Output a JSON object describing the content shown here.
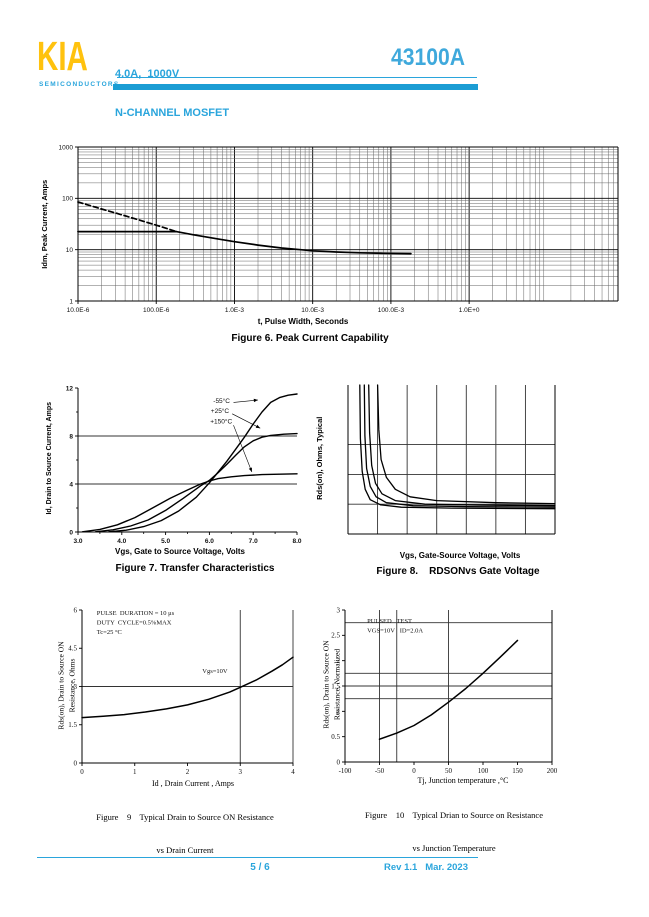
{
  "header": {
    "logo": "KIA",
    "logo_sub": "SEMICONDUCTORS",
    "subtitle_line1": "4.0A,  1000V",
    "subtitle_line2": "N-CHANNEL MOSFET",
    "part_number": "43100A",
    "accent_color": "#1B9DD4",
    "logo_color": "#FFC20E"
  },
  "footer": {
    "page": "5 / 6",
    "revision": "Rev 1.1   Mar. 2023"
  },
  "chart_data": [
    {
      "id": "fig6",
      "type": "line",
      "title": "Figure 6. Peak Current Capability",
      "xlabel": "t, Pulse Width, Seconds",
      "ylabel": "Idm, Peak Current, Amps",
      "x_scale": "log",
      "y_scale": "log",
      "xlim": [
        1e-05,
        80
      ],
      "ylim": [
        1,
        1000
      ],
      "grid": "log-minor",
      "legend_position": "none",
      "border": [
        "left",
        "right",
        "top",
        "bottom"
      ],
      "x_ticks": {
        "values": [
          1e-05,
          0.0001,
          0.001,
          0.01,
          0.1,
          1
        ],
        "labels": [
          "10.0E-6",
          "100.0E-6",
          "1.0E-3",
          "10.0E-3",
          "100.0E-3",
          "1.0E+0"
        ]
      },
      "y_ticks": {
        "values": [
          1,
          10,
          100,
          1000
        ],
        "labels": [
          "1",
          "10",
          "100",
          "1000"
        ]
      },
      "series": [
        {
          "name": "single-pulse-dashed",
          "dash": true,
          "width": 1.7,
          "points": [
            [
              1e-05,
              85
            ],
            [
              2e-05,
              62
            ],
            [
              3e-05,
              52
            ],
            [
              6e-05,
              38
            ],
            [
              0.0001,
              30
            ],
            [
              0.00014,
              25.5
            ],
            [
              0.00018,
              22.5
            ]
          ]
        },
        {
          "name": "dc-limit",
          "width": 1.7,
          "points": [
            [
              1e-05,
              22.5
            ],
            [
              0.00018,
              22.5
            ]
          ]
        },
        {
          "name": "peak-current",
          "width": 1.7,
          "points": [
            [
              0.00018,
              22.5
            ],
            [
              0.0003,
              19.5
            ],
            [
              0.0006,
              16.3
            ],
            [
              0.001,
              14.3
            ],
            [
              0.002,
              12.3
            ],
            [
              0.004,
              10.8
            ],
            [
              0.007,
              10.0
            ],
            [
              0.01,
              9.5
            ],
            [
              0.02,
              9.0
            ],
            [
              0.04,
              8.7
            ],
            [
              0.08,
              8.5
            ],
            [
              0.18,
              8.4
            ]
          ]
        }
      ]
    },
    {
      "id": "fig7",
      "type": "line",
      "title": "Figure 7. Transfer Characteristics",
      "xlabel": "Vgs, Gate to Source Voltage, Volts",
      "ylabel": "Id, Drain to Source Current, Amps",
      "x_scale": "linear",
      "y_scale": "linear",
      "xlim": [
        3,
        8
      ],
      "ylim": [
        0,
        12
      ],
      "y_grid": [
        4,
        8
      ],
      "border": [
        "left",
        "bottom"
      ],
      "x_ticks": {
        "values": [
          3,
          4,
          5,
          6,
          7,
          8
        ],
        "labels": [
          "3.0",
          "4.0",
          "5.0",
          "6.0",
          "7.0",
          "8.0"
        ]
      },
      "y_ticks": {
        "values": [
          0,
          4,
          8,
          12
        ],
        "labels": [
          "0",
          "4",
          "8",
          "12"
        ]
      },
      "x_minor_ticks": [
        3.5,
        4.5,
        5.5,
        6.5,
        7.5
      ],
      "y_minor_ticks": [
        2,
        6,
        10
      ],
      "series": [
        {
          "name": "minus-55C",
          "label": "-55°C",
          "width": 1.4,
          "points": [
            [
              3.7,
              0.02
            ],
            [
              4.1,
              0.15
            ],
            [
              4.5,
              0.45
            ],
            [
              4.9,
              0.95
            ],
            [
              5.3,
              1.75
            ],
            [
              5.7,
              2.9
            ],
            [
              6.0,
              4.1
            ],
            [
              6.2,
              5.0
            ],
            [
              6.4,
              5.9
            ],
            [
              6.6,
              6.9
            ],
            [
              6.8,
              7.9
            ],
            [
              7.0,
              9.0
            ],
            [
              7.2,
              10.0
            ],
            [
              7.4,
              10.8
            ],
            [
              7.6,
              11.2
            ],
            [
              7.8,
              11.4
            ],
            [
              8.0,
              11.5
            ]
          ]
        },
        {
          "name": "plus-25C",
          "label": "+25°C",
          "width": 1.4,
          "points": [
            [
              3.4,
              0.02
            ],
            [
              3.8,
              0.18
            ],
            [
              4.2,
              0.5
            ],
            [
              4.6,
              1.0
            ],
            [
              5.0,
              1.8
            ],
            [
              5.4,
              2.8
            ],
            [
              5.8,
              3.85
            ],
            [
              6.0,
              4.3
            ],
            [
              6.2,
              4.95
            ],
            [
              6.4,
              5.65
            ],
            [
              6.6,
              6.4
            ],
            [
              6.8,
              7.1
            ],
            [
              7.0,
              7.6
            ],
            [
              7.2,
              7.9
            ],
            [
              7.4,
              8.05
            ],
            [
              7.7,
              8.15
            ],
            [
              8.0,
              8.2
            ]
          ]
        },
        {
          "name": "plus-150C",
          "label": "+150°C",
          "width": 1.4,
          "points": [
            [
              3.1,
              0.02
            ],
            [
              3.5,
              0.22
            ],
            [
              3.9,
              0.6
            ],
            [
              4.3,
              1.2
            ],
            [
              4.7,
              2.0
            ],
            [
              5.1,
              2.8
            ],
            [
              5.5,
              3.5
            ],
            [
              5.8,
              4.0
            ],
            [
              6.0,
              4.25
            ],
            [
              6.2,
              4.45
            ],
            [
              6.5,
              4.6
            ],
            [
              6.8,
              4.7
            ],
            [
              7.2,
              4.78
            ],
            [
              8.0,
              4.85
            ]
          ]
        }
      ],
      "annotations": [
        {
          "text": "-55°C",
          "x": 6.47,
          "y": 10.75,
          "anchor": "end",
          "size": 6.5
        },
        {
          "text": "+25°C",
          "x": 6.45,
          "y": 9.9,
          "anchor": "end",
          "size": 6.5
        },
        {
          "text": "+150°C",
          "x": 6.52,
          "y": 9.05,
          "anchor": "end",
          "size": 6.5
        }
      ],
      "arrows": [
        {
          "from": [
            6.55,
            10.8
          ],
          "to": [
            7.11,
            11.0
          ]
        },
        {
          "from": [
            6.52,
            9.85
          ],
          "to": [
            7.16,
            8.65
          ]
        },
        {
          "from": [
            6.55,
            8.9
          ],
          "to": [
            6.97,
            5.0
          ]
        }
      ]
    },
    {
      "id": "fig8",
      "type": "line",
      "title": "Figure 8.    RDSONvs Gate Voltage",
      "xlabel": "Vgs, Gate-Source Voltage, Volts",
      "ylabel": "Rds(on), Ohms, Typical",
      "x_scale": "linear",
      "y_scale": "linear",
      "xlim": [
        0,
        7
      ],
      "ylim": [
        0,
        5
      ],
      "x_grid": [
        1,
        2,
        3,
        4,
        5,
        6
      ],
      "y_grid": [
        1,
        2,
        3
      ],
      "border": [
        "left",
        "bottom",
        "right"
      ],
      "series": [
        {
          "name": "rdson-curve-1",
          "width": 1.3,
          "points": [
            [
              0.4,
              5
            ],
            [
              0.42,
              3.2
            ],
            [
              0.48,
              2.1
            ],
            [
              0.58,
              1.5
            ],
            [
              0.75,
              1.15
            ],
            [
              1.1,
              0.98
            ],
            [
              1.8,
              0.9
            ],
            [
              3.5,
              0.87
            ],
            [
              7,
              0.85
            ]
          ]
        },
        {
          "name": "rdson-curve-2",
          "width": 1.3,
          "points": [
            [
              0.55,
              5
            ],
            [
              0.57,
              3.3
            ],
            [
              0.63,
              2.2
            ],
            [
              0.75,
              1.6
            ],
            [
              0.95,
              1.25
            ],
            [
              1.3,
              1.05
            ],
            [
              2.2,
              0.95
            ],
            [
              4,
              0.92
            ],
            [
              7,
              0.9
            ]
          ]
        },
        {
          "name": "rdson-curve-3",
          "width": 1.3,
          "points": [
            [
              0.7,
              5
            ],
            [
              0.73,
              3.4
            ],
            [
              0.8,
              2.3
            ],
            [
              0.93,
              1.7
            ],
            [
              1.15,
              1.35
            ],
            [
              1.6,
              1.12
            ],
            [
              2.6,
              1.0
            ],
            [
              4.5,
              0.97
            ],
            [
              7,
              0.95
            ]
          ]
        },
        {
          "name": "rdson-curve-4",
          "width": 1.3,
          "points": [
            [
              1.0,
              5
            ],
            [
              1.04,
              3.5
            ],
            [
              1.12,
              2.5
            ],
            [
              1.3,
              1.9
            ],
            [
              1.6,
              1.5
            ],
            [
              2.1,
              1.25
            ],
            [
              3.0,
              1.12
            ],
            [
              5,
              1.05
            ],
            [
              7,
              1.02
            ]
          ]
        }
      ]
    },
    {
      "id": "fig9",
      "type": "line",
      "font": "serif",
      "title": "Figure    9    Typical Drain to Source ON Resistance",
      "title2": "vs Drain Current",
      "xlabel": "Id , Drain Current , Amps",
      "ylabel_lines": [
        "Rds(on), Drain to Source ON",
        "Resistance, Ohms"
      ],
      "x_scale": "linear",
      "y_scale": "linear",
      "xlim": [
        0,
        4
      ],
      "ylim": [
        0,
        6
      ],
      "x_grid": [
        3,
        4
      ],
      "y_grid": [
        3
      ],
      "border": [
        "left",
        "bottom"
      ],
      "x_ticks": {
        "values": [
          0,
          1,
          2,
          3,
          4
        ],
        "labels": [
          "0",
          "1",
          "2",
          "3",
          "4"
        ]
      },
      "y_ticks": {
        "values": [
          0,
          1.5,
          3,
          4.5,
          6
        ],
        "labels": [
          "0",
          "1.5",
          "3",
          "4.5",
          "6"
        ]
      },
      "series": [
        {
          "name": "rdson-vs-drain-current",
          "width": 1.5,
          "points": [
            [
              0,
              1.78
            ],
            [
              0.4,
              1.83
            ],
            [
              0.8,
              1.9
            ],
            [
              1.2,
              2.0
            ],
            [
              1.6,
              2.12
            ],
            [
              2.0,
              2.28
            ],
            [
              2.4,
              2.5
            ],
            [
              2.8,
              2.78
            ],
            [
              3.0,
              2.97
            ],
            [
              3.3,
              3.25
            ],
            [
              3.6,
              3.6
            ],
            [
              3.8,
              3.85
            ],
            [
              4.0,
              4.15
            ]
          ]
        }
      ],
      "annotations": [
        {
          "text": "PULSE  DURATION = 10 μs",
          "x": 0.28,
          "y": 5.8,
          "anchor": "start",
          "size": 6.5
        },
        {
          "text": "DUTY  CYCLE=0.5%MAX",
          "x": 0.28,
          "y": 5.43,
          "anchor": "start",
          "size": 6.5
        },
        {
          "text": "Tc=25 °C",
          "x": 0.28,
          "y": 5.06,
          "anchor": "start",
          "size": 6.5
        },
        {
          "text": "Vgs=10V",
          "x": 2.28,
          "y": 3.52,
          "anchor": "start",
          "size": 6.5
        }
      ]
    },
    {
      "id": "fig10",
      "type": "line",
      "font": "serif",
      "title": "Figure    10    Typical Drian to Source on Resistance",
      "title2": "vs Junction Temperature",
      "xlabel": "Tj, Junction temperature ,°C",
      "ylabel_lines": [
        "Rds(on), Drain to Source ON",
        "Resistance, Normalized"
      ],
      "x_scale": "linear",
      "y_scale": "linear",
      "xlim": [
        -100,
        200
      ],
      "ylim": [
        0,
        3
      ],
      "x_grid": [
        -50,
        -25,
        50
      ],
      "y_grid": [
        1.25,
        1.5,
        1.75,
        2.75
      ],
      "border": [
        "left",
        "bottom",
        "right"
      ],
      "x_ticks": {
        "values": [
          -100,
          -50,
          0,
          50,
          100,
          150,
          200
        ],
        "labels": [
          "-100",
          "-50",
          "0",
          "50",
          "100",
          "150",
          "200"
        ]
      },
      "y_ticks": {
        "values": [
          0,
          0.5,
          1,
          1.5,
          2,
          2.5,
          3
        ],
        "labels": [
          "0",
          "0.5",
          "1",
          "1.5",
          "2",
          "2.5",
          "3"
        ]
      },
      "series": [
        {
          "name": "rdson-vs-junction-temp",
          "width": 1.5,
          "points": [
            [
              -50,
              0.45
            ],
            [
              -25,
              0.57
            ],
            [
              0,
              0.72
            ],
            [
              25,
              0.93
            ],
            [
              50,
              1.18
            ],
            [
              75,
              1.45
            ],
            [
              100,
              1.75
            ],
            [
              125,
              2.07
            ],
            [
              150,
              2.4
            ]
          ]
        }
      ],
      "annotations": [
        {
          "text": "PULSED   TEST",
          "x": -68,
          "y": 2.74,
          "anchor": "start",
          "size": 6.5
        },
        {
          "text": "VGS=10V   ID=2.0A",
          "x": -68,
          "y": 2.56,
          "anchor": "start",
          "size": 6.5
        }
      ]
    }
  ]
}
